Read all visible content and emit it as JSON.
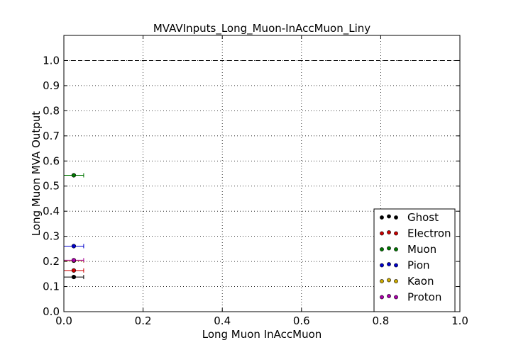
{
  "chart_data": {
    "type": "scatter",
    "title": "MVAVInputs_Long_Muon-InAccMuon_Liny",
    "xlabel": "Long Muon InAccMuon",
    "ylabel": "Long Muon MVA Output",
    "xlim": [
      0.0,
      1.0
    ],
    "ylim": [
      0.0,
      1.1
    ],
    "xticks": [
      "0.0",
      "0.2",
      "0.4",
      "0.6",
      "0.8",
      "1.0"
    ],
    "yticks": [
      "0.0",
      "0.1",
      "0.2",
      "0.3",
      "0.4",
      "0.5",
      "0.6",
      "0.7",
      "0.8",
      "0.9",
      "1.0"
    ],
    "grid": true,
    "reference_line": {
      "y": 1.0,
      "style": "dashed"
    },
    "legend_position": "lower-right",
    "series": [
      {
        "name": "Ghost",
        "color": "#000000",
        "x": 0.025,
        "xerr": 0.025,
        "y": 0.138,
        "yerr": 0.004
      },
      {
        "name": "Electron",
        "color": "#cc0000",
        "x": 0.025,
        "xerr": 0.025,
        "y": 0.164,
        "yerr": 0.004
      },
      {
        "name": "Muon",
        "color": "#007700",
        "x": 0.025,
        "xerr": 0.025,
        "y": 0.543,
        "yerr": 0.004
      },
      {
        "name": "Pion",
        "color": "#0000cc",
        "x": 0.025,
        "xerr": 0.025,
        "y": 0.261,
        "yerr": 0.004
      },
      {
        "name": "Kaon",
        "color": "#ccaa00",
        "x": 0.025,
        "xerr": 0.025,
        "y": 0.203,
        "yerr": 0.004
      },
      {
        "name": "Proton",
        "color": "#aa00aa",
        "x": 0.025,
        "xerr": 0.025,
        "y": 0.205,
        "yerr": 0.004
      }
    ]
  }
}
